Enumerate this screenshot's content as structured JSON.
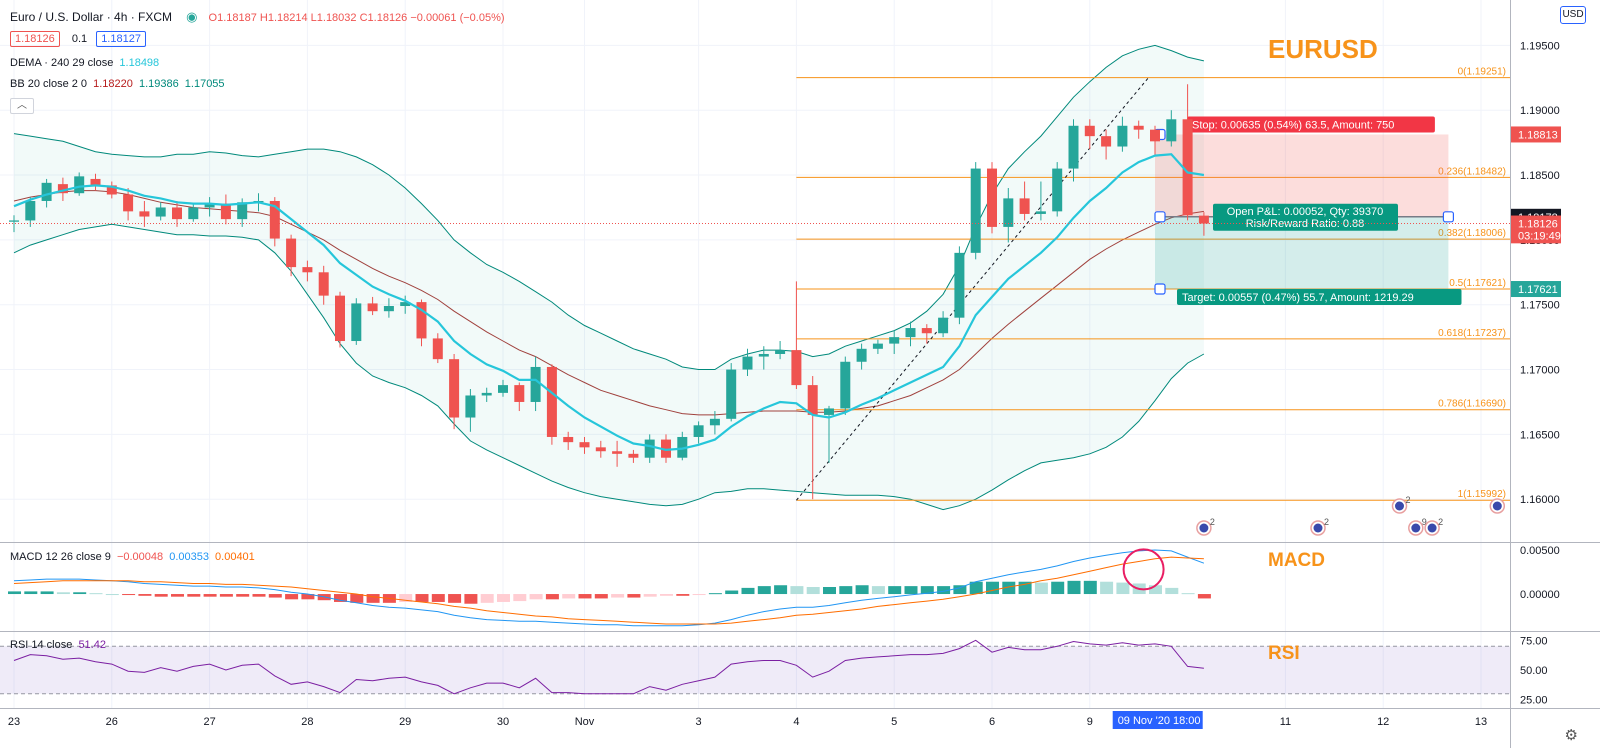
{
  "header": {
    "symbol": "Euro / U.S. Dollar · 4h · FXCM",
    "ohlc": "O1.18187  H1.18214  L1.18032  C1.18126  −0.00061 (−0.05%)",
    "sell_price": "1.18126",
    "spread": "0.1",
    "buy_price": "1.18127",
    "status_color": "#26a69a"
  },
  "indicators": {
    "dema_label": "DEMA · 240 29 close",
    "dema_value": "1.18498",
    "bb_label": "BB 20 close 2 0",
    "bb_values": [
      "1.18220",
      "1.19386",
      "1.17055"
    ],
    "collapse_icon": "chevron-up-icon"
  },
  "currency_button": "USD",
  "titles": {
    "main": "EURUSD",
    "macd": "MACD",
    "rsi": "RSI"
  },
  "price_axis": {
    "ticks": [
      "1.19500",
      "1.19000",
      "1.18500",
      "1.18000",
      "1.17500",
      "1.17000",
      "1.16500",
      "1.16000"
    ],
    "ticks_values": [
      1.195,
      1.19,
      1.185,
      1.18,
      1.175,
      1.17,
      1.165,
      1.16
    ],
    "ylim": [
      1.1567,
      1.1985
    ],
    "labels": [
      {
        "text": "1.18813",
        "value": 1.18813,
        "color": "#ef5350"
      },
      {
        "text": "1.18178",
        "value": 1.18178,
        "color": "#131722"
      },
      {
        "text": "1.18126",
        "value": 1.18126,
        "color": "#ef5350"
      },
      {
        "text": "03:19:49",
        "value": 1.18035,
        "color": "#ef5350"
      },
      {
        "text": "1.17621",
        "value": 1.17621,
        "color": "#26a69a"
      }
    ]
  },
  "macd_axis": {
    "ticks": [
      "0.00500",
      "0.00000"
    ],
    "ticks_values": [
      0.005,
      0.0
    ],
    "ylim": [
      -0.0042,
      0.0058
    ]
  },
  "rsi_axis": {
    "ticks": [
      "75.00",
      "50.00",
      "25.00"
    ],
    "ticks_values": [
      75,
      50,
      25
    ],
    "ylim": [
      18,
      82
    ]
  },
  "time_axis": {
    "ticks": [
      {
        "label": "23",
        "i": 0
      },
      {
        "label": "26",
        "i": 6
      },
      {
        "label": "27",
        "i": 12
      },
      {
        "label": "28",
        "i": 18
      },
      {
        "label": "29",
        "i": 24
      },
      {
        "label": "30",
        "i": 30
      },
      {
        "label": "Nov",
        "i": 35
      },
      {
        "label": "3",
        "i": 42
      },
      {
        "label": "4",
        "i": 48
      },
      {
        "label": "5",
        "i": 54
      },
      {
        "label": "6",
        "i": 60
      },
      {
        "label": "9",
        "i": 66
      },
      {
        "label": "11",
        "i": 78
      },
      {
        "label": "12",
        "i": 84
      },
      {
        "label": "13",
        "i": 90
      }
    ],
    "current": "09 Nov '20   18:00",
    "current_i": 69
  },
  "fibonacci": {
    "levels": [
      {
        "label": "0(1.19251)",
        "value": 1.19251
      },
      {
        "label": "0.236(1.18482)",
        "value": 1.18482
      },
      {
        "label": "0.382(1.18006)",
        "value": 1.18006
      },
      {
        "label": "0.5(1.17621)",
        "value": 1.17621
      },
      {
        "label": "0.618(1.17237)",
        "value": 1.17237
      },
      {
        "label": "0.786(1.16690)",
        "value": 1.1669
      },
      {
        "label": "1(1.15992)",
        "value": 1.15992
      }
    ],
    "start_i": 48,
    "color": "#f7931a"
  },
  "position": {
    "stop_label": "Stop: 0.00635 (0.54%) 63.5, Amount: 750",
    "pnl_label": "Open P&L: 0.00052, Qty: 39370",
    "rr_label": "Risk/Reward Ratio: 0.88",
    "target_label": "Target: 0.00557 (0.47%) 55.7, Amount: 1219.29",
    "entry": 1.18178,
    "stop": 1.18813,
    "target": 1.17621,
    "start_i": 70,
    "end_i": 88
  },
  "macd_legend": {
    "label": "MACD 12 26 close 9",
    "values": [
      "−0.00048",
      "0.00353",
      "0.00401"
    ]
  },
  "rsi_legend": {
    "label": "RSI 14 close",
    "value": "51.42"
  },
  "event_badges": [
    {
      "i": 73,
      "count": "2"
    },
    {
      "i": 80,
      "count": "2"
    },
    {
      "i": 85,
      "count": "2"
    },
    {
      "i": 86,
      "count": "9"
    },
    {
      "i": 87,
      "count": "2"
    },
    {
      "i": 91,
      "count": ""
    }
  ],
  "chart_data": {
    "type": "candlestick",
    "ohlc": [
      [
        1.1814,
        1.1819,
        1.1806,
        1.1815
      ],
      [
        1.1815,
        1.1833,
        1.181,
        1.183
      ],
      [
        1.183,
        1.1847,
        1.1825,
        1.1844
      ],
      [
        1.1843,
        1.1848,
        1.183,
        1.1836
      ],
      [
        1.1836,
        1.1852,
        1.1834,
        1.1849
      ],
      [
        1.1847,
        1.1851,
        1.1838,
        1.1842
      ],
      [
        1.1842,
        1.1845,
        1.1832,
        1.1835
      ],
      [
        1.1835,
        1.184,
        1.1815,
        1.1822
      ],
      [
        1.1822,
        1.183,
        1.181,
        1.1818
      ],
      [
        1.1818,
        1.1829,
        1.1815,
        1.1825
      ],
      [
        1.1825,
        1.183,
        1.181,
        1.1816
      ],
      [
        1.1816,
        1.1828,
        1.1814,
        1.1825
      ],
      [
        1.1825,
        1.1833,
        1.1818,
        1.1828
      ],
      [
        1.1828,
        1.1835,
        1.1812,
        1.1816
      ],
      [
        1.1816,
        1.1832,
        1.181,
        1.1829
      ],
      [
        1.1829,
        1.1836,
        1.1822,
        1.183
      ],
      [
        1.183,
        1.1833,
        1.1795,
        1.1801
      ],
      [
        1.1801,
        1.1804,
        1.1772,
        1.1779
      ],
      [
        1.1779,
        1.1784,
        1.1768,
        1.1775
      ],
      [
        1.1775,
        1.178,
        1.175,
        1.1757
      ],
      [
        1.1757,
        1.176,
        1.1717,
        1.1722
      ],
      [
        1.1722,
        1.1755,
        1.1719,
        1.1751
      ],
      [
        1.1751,
        1.1756,
        1.1742,
        1.1745
      ],
      [
        1.1745,
        1.1755,
        1.174,
        1.1749
      ],
      [
        1.1749,
        1.1757,
        1.1743,
        1.1752
      ],
      [
        1.1752,
        1.1754,
        1.1718,
        1.1724
      ],
      [
        1.1724,
        1.1728,
        1.1705,
        1.1708
      ],
      [
        1.1708,
        1.1712,
        1.1654,
        1.1663
      ],
      [
        1.1663,
        1.1685,
        1.1652,
        1.168
      ],
      [
        1.168,
        1.1686,
        1.1675,
        1.1682
      ],
      [
        1.1682,
        1.1692,
        1.1679,
        1.1688
      ],
      [
        1.1688,
        1.169,
        1.1668,
        1.1675
      ],
      [
        1.1675,
        1.171,
        1.1668,
        1.1702
      ],
      [
        1.1702,
        1.1704,
        1.1642,
        1.1648
      ],
      [
        1.1648,
        1.1652,
        1.1638,
        1.1644
      ],
      [
        1.1644,
        1.1648,
        1.1635,
        1.164
      ],
      [
        1.164,
        1.1645,
        1.1632,
        1.1637
      ],
      [
        1.1637,
        1.1645,
        1.1625,
        1.1635
      ],
      [
        1.1635,
        1.1638,
        1.1628,
        1.1632
      ],
      [
        1.1632,
        1.165,
        1.1628,
        1.1646
      ],
      [
        1.1646,
        1.165,
        1.1628,
        1.1632
      ],
      [
        1.1632,
        1.1652,
        1.163,
        1.1648
      ],
      [
        1.1648,
        1.166,
        1.1643,
        1.1657
      ],
      [
        1.1657,
        1.1668,
        1.165,
        1.1662
      ],
      [
        1.1662,
        1.1705,
        1.166,
        1.17
      ],
      [
        1.17,
        1.1716,
        1.1695,
        1.171
      ],
      [
        1.171,
        1.1718,
        1.17,
        1.1712
      ],
      [
        1.1712,
        1.1722,
        1.1708,
        1.1715
      ],
      [
        1.1715,
        1.1768,
        1.1685,
        1.1688
      ],
      [
        1.1688,
        1.1695,
        1.16,
        1.1665
      ],
      [
        1.1665,
        1.1672,
        1.1628,
        1.167
      ],
      [
        1.167,
        1.171,
        1.1665,
        1.1706
      ],
      [
        1.1706,
        1.172,
        1.17,
        1.1716
      ],
      [
        1.1716,
        1.1723,
        1.1712,
        1.172
      ],
      [
        1.172,
        1.173,
        1.1712,
        1.1725
      ],
      [
        1.1725,
        1.1737,
        1.1718,
        1.1732
      ],
      [
        1.1732,
        1.1735,
        1.172,
        1.1728
      ],
      [
        1.1728,
        1.1745,
        1.1725,
        1.174
      ],
      [
        1.174,
        1.1795,
        1.1735,
        1.179
      ],
      [
        1.179,
        1.186,
        1.1785,
        1.1855
      ],
      [
        1.1855,
        1.186,
        1.1805,
        1.181
      ],
      [
        1.181,
        1.184,
        1.1798,
        1.1832
      ],
      [
        1.1832,
        1.1845,
        1.1815,
        1.182
      ],
      [
        1.182,
        1.1845,
        1.1815,
        1.1822
      ],
      [
        1.1822,
        1.186,
        1.1818,
        1.1855
      ],
      [
        1.1855,
        1.1893,
        1.1845,
        1.1888
      ],
      [
        1.1888,
        1.1893,
        1.187,
        1.188
      ],
      [
        1.188,
        1.1885,
        1.1862,
        1.1872
      ],
      [
        1.1872,
        1.1895,
        1.1868,
        1.1888
      ],
      [
        1.1888,
        1.1892,
        1.1878,
        1.1885
      ],
      [
        1.1885,
        1.1888,
        1.1865,
        1.1876
      ],
      [
        1.1876,
        1.19,
        1.1872,
        1.1893
      ],
      [
        1.1893,
        1.192,
        1.1815,
        1.1819
      ],
      [
        1.18187,
        1.18214,
        1.18032,
        1.18126
      ]
    ],
    "dema": [
      1.1826,
      1.1831,
      1.1835,
      1.1838,
      1.1841,
      1.1842,
      1.1841,
      1.1838,
      1.1834,
      1.1832,
      1.1829,
      1.1828,
      1.1828,
      1.1827,
      1.1828,
      1.1829,
      1.1826,
      1.1816,
      1.1806,
      1.1796,
      1.1782,
      1.1773,
      1.1764,
      1.1758,
      1.1753,
      1.1746,
      1.1737,
      1.1722,
      1.1712,
      1.1704,
      1.1699,
      1.1692,
      1.1692,
      1.1682,
      1.1672,
      1.1663,
      1.1656,
      1.1649,
      1.1643,
      1.1641,
      1.1638,
      1.1639,
      1.1642,
      1.1646,
      1.1656,
      1.1664,
      1.167,
      1.1675,
      1.1674,
      1.1665,
      1.1663,
      1.1667,
      1.1673,
      1.1678,
      1.1684,
      1.169,
      1.1696,
      1.1702,
      1.1718,
      1.1742,
      1.1756,
      1.177,
      1.178,
      1.179,
      1.1802,
      1.1817,
      1.183,
      1.184,
      1.1852,
      1.186,
      1.1865,
      1.1866,
      1.1852,
      1.185
    ],
    "sma": [
      1.183,
      1.1833,
      1.1835,
      1.1837,
      1.1838,
      1.1838,
      1.1837,
      1.1835,
      1.1832,
      1.1829,
      1.1827,
      1.1825,
      1.1824,
      1.1823,
      1.1822,
      1.1821,
      1.1818,
      1.1812,
      1.1806,
      1.18,
      1.1792,
      1.1785,
      1.1778,
      1.1772,
      1.1767,
      1.1761,
      1.1754,
      1.1745,
      1.1737,
      1.1729,
      1.1722,
      1.1715,
      1.171,
      1.1703,
      1.1696,
      1.169,
      1.1684,
      1.168,
      1.1676,
      1.1672,
      1.1669,
      1.1666,
      1.1665,
      1.1665,
      1.1666,
      1.1667,
      1.1668,
      1.1668,
      1.1668,
      1.1667,
      1.1667,
      1.1668,
      1.167,
      1.1672,
      1.1676,
      1.168,
      1.1686,
      1.1692,
      1.17,
      1.1712,
      1.1724,
      1.1735,
      1.1745,
      1.1755,
      1.1765,
      1.1775,
      1.1785,
      1.1793,
      1.18,
      1.1806,
      1.1812,
      1.1817,
      1.182,
      1.1822
    ],
    "bb_upper": [
      1.1882,
      1.188,
      1.1878,
      1.1876,
      1.1872,
      1.1868,
      1.1866,
      1.1865,
      1.1864,
      1.1864,
      1.1866,
      1.1866,
      1.1868,
      1.1867,
      1.1865,
      1.1864,
      1.1866,
      1.1868,
      1.187,
      1.187,
      1.1868,
      1.1864,
      1.1858,
      1.185,
      1.184,
      1.1828,
      1.1815,
      1.18,
      1.179,
      1.1781,
      1.1775,
      1.1768,
      1.176,
      1.1752,
      1.1742,
      1.1734,
      1.1728,
      1.1722,
      1.1716,
      1.1712,
      1.1708,
      1.1702,
      1.17,
      1.17,
      1.1708,
      1.1712,
      1.1715,
      1.1715,
      1.1714,
      1.171,
      1.1712,
      1.1718,
      1.1722,
      1.1726,
      1.173,
      1.1736,
      1.1745,
      1.1758,
      1.178,
      1.181,
      1.1835,
      1.1855,
      1.1868,
      1.188,
      1.1895,
      1.191,
      1.1922,
      1.1933,
      1.1942,
      1.1947,
      1.195,
      1.1946,
      1.1941,
      1.1938
    ],
    "bb_lower": [
      1.179,
      1.1796,
      1.18,
      1.1804,
      1.1808,
      1.181,
      1.1812,
      1.181,
      1.1808,
      1.1806,
      1.1804,
      1.1804,
      1.1803,
      1.1803,
      1.1802,
      1.18,
      1.179,
      1.1776,
      1.1758,
      1.174,
      1.172,
      1.1705,
      1.1695,
      1.169,
      1.1686,
      1.168,
      1.1672,
      1.1658,
      1.1645,
      1.1638,
      1.1632,
      1.1626,
      1.162,
      1.1614,
      1.1609,
      1.1605,
      1.1602,
      1.16,
      1.1598,
      1.1596,
      1.1595,
      1.1596,
      1.16,
      1.1605,
      1.1606,
      1.1608,
      1.1608,
      1.1607,
      1.1606,
      1.1605,
      1.1604,
      1.1603,
      1.1603,
      1.1603,
      1.1602,
      1.16,
      1.1596,
      1.1592,
      1.1595,
      1.16,
      1.1607,
      1.1615,
      1.1622,
      1.1628,
      1.163,
      1.1632,
      1.1635,
      1.164,
      1.1648,
      1.166,
      1.1676,
      1.1693,
      1.1705,
      1.1712
    ],
    "macd": [
      0.0015,
      0.0016,
      0.0017,
      0.0017,
      0.0017,
      0.0016,
      0.0015,
      0.0014,
      0.0012,
      0.0011,
      0.001,
      0.0009,
      0.0009,
      0.0008,
      0.0008,
      0.0007,
      0.0005,
      0.0002,
      0.0,
      -0.0003,
      -0.0007,
      -0.001,
      -0.0013,
      -0.0015,
      -0.0016,
      -0.0018,
      -0.002,
      -0.0024,
      -0.0027,
      -0.0029,
      -0.003,
      -0.0031,
      -0.0031,
      -0.0032,
      -0.0033,
      -0.0034,
      -0.0035,
      -0.0035,
      -0.0036,
      -0.0036,
      -0.0036,
      -0.0036,
      -0.0035,
      -0.0033,
      -0.0029,
      -0.0024,
      -0.002,
      -0.0017,
      -0.0015,
      -0.0015,
      -0.0013,
      -0.001,
      -0.0007,
      -0.0005,
      -0.0003,
      -0.0001,
      0.0001,
      0.0003,
      0.0007,
      0.0014,
      0.0018,
      0.0022,
      0.0025,
      0.0028,
      0.0032,
      0.0037,
      0.0041,
      0.0044,
      0.0047,
      0.0049,
      0.005,
      0.0049,
      0.0042,
      0.0035
    ],
    "macd_signal": [
      0.0012,
      0.0013,
      0.0014,
      0.0015,
      0.0015,
      0.0015,
      0.0015,
      0.0015,
      0.0014,
      0.0014,
      0.0013,
      0.0012,
      0.0012,
      0.0011,
      0.0011,
      0.001,
      0.0009,
      0.0008,
      0.0006,
      0.0004,
      0.0002,
      -0.0,
      -0.0003,
      -0.0005,
      -0.0007,
      -0.0009,
      -0.0011,
      -0.0014,
      -0.0016,
      -0.0019,
      -0.0021,
      -0.0023,
      -0.0025,
      -0.0026,
      -0.0028,
      -0.0029,
      -0.003,
      -0.0031,
      -0.0032,
      -0.0033,
      -0.0034,
      -0.0034,
      -0.0034,
      -0.0034,
      -0.0033,
      -0.0031,
      -0.0029,
      -0.0027,
      -0.0024,
      -0.0023,
      -0.0021,
      -0.0019,
      -0.0017,
      -0.0014,
      -0.0012,
      -0.001,
      -0.0008,
      -0.0006,
      -0.0003,
      0.0,
      0.0004,
      0.0008,
      0.0011,
      0.0015,
      0.0018,
      0.0022,
      0.0026,
      0.003,
      0.0034,
      0.0037,
      0.004,
      0.0042,
      0.0041,
      0.004
    ],
    "rsi": [
      58,
      63,
      62,
      59,
      60,
      57,
      55,
      49,
      48,
      52,
      49,
      53,
      55,
      50,
      54,
      55,
      45,
      38,
      40,
      36,
      31,
      42,
      41,
      43,
      44,
      40,
      37,
      30,
      35,
      39,
      39,
      35,
      43,
      31,
      31,
      30,
      30,
      30,
      30,
      36,
      33,
      38,
      41,
      44,
      55,
      57,
      58,
      58,
      54,
      44,
      49,
      58,
      60,
      61,
      62,
      63,
      63,
      64,
      68,
      75,
      65,
      69,
      67,
      67,
      70,
      74,
      72,
      71,
      73,
      71,
      72,
      70,
      53,
      51.42
    ],
    "rsi_band": [
      30,
      70
    ],
    "macd_hist": [
      0.0003,
      0.0003,
      0.0003,
      0.0002,
      0.0002,
      0.0001,
      0.0,
      -0.0001,
      -0.0002,
      -0.0003,
      -0.0003,
      -0.0003,
      -0.0003,
      -0.0003,
      -0.0003,
      -0.0003,
      -0.0004,
      -0.0006,
      -0.0006,
      -0.0007,
      -0.0009,
      -0.001,
      -0.001,
      -0.001,
      -0.0009,
      -0.0009,
      -0.0009,
      -0.001,
      -0.0011,
      -0.001,
      -0.0009,
      -0.0008,
      -0.0006,
      -0.0006,
      -0.0005,
      -0.0005,
      -0.0005,
      -0.0004,
      -0.0004,
      -0.0003,
      -0.0002,
      -0.0002,
      -0.0001,
      0.0001,
      0.0004,
      0.0007,
      0.0009,
      0.001,
      0.0009,
      0.0008,
      0.0008,
      0.0009,
      0.001,
      0.0009,
      0.0009,
      0.0009,
      0.0009,
      0.0009,
      0.001,
      0.0014,
      0.0014,
      0.0014,
      0.0014,
      0.0013,
      0.0014,
      0.0015,
      0.0015,
      0.0014,
      0.0013,
      0.0012,
      0.001,
      0.0007,
      0.0001,
      -0.0005
    ]
  }
}
